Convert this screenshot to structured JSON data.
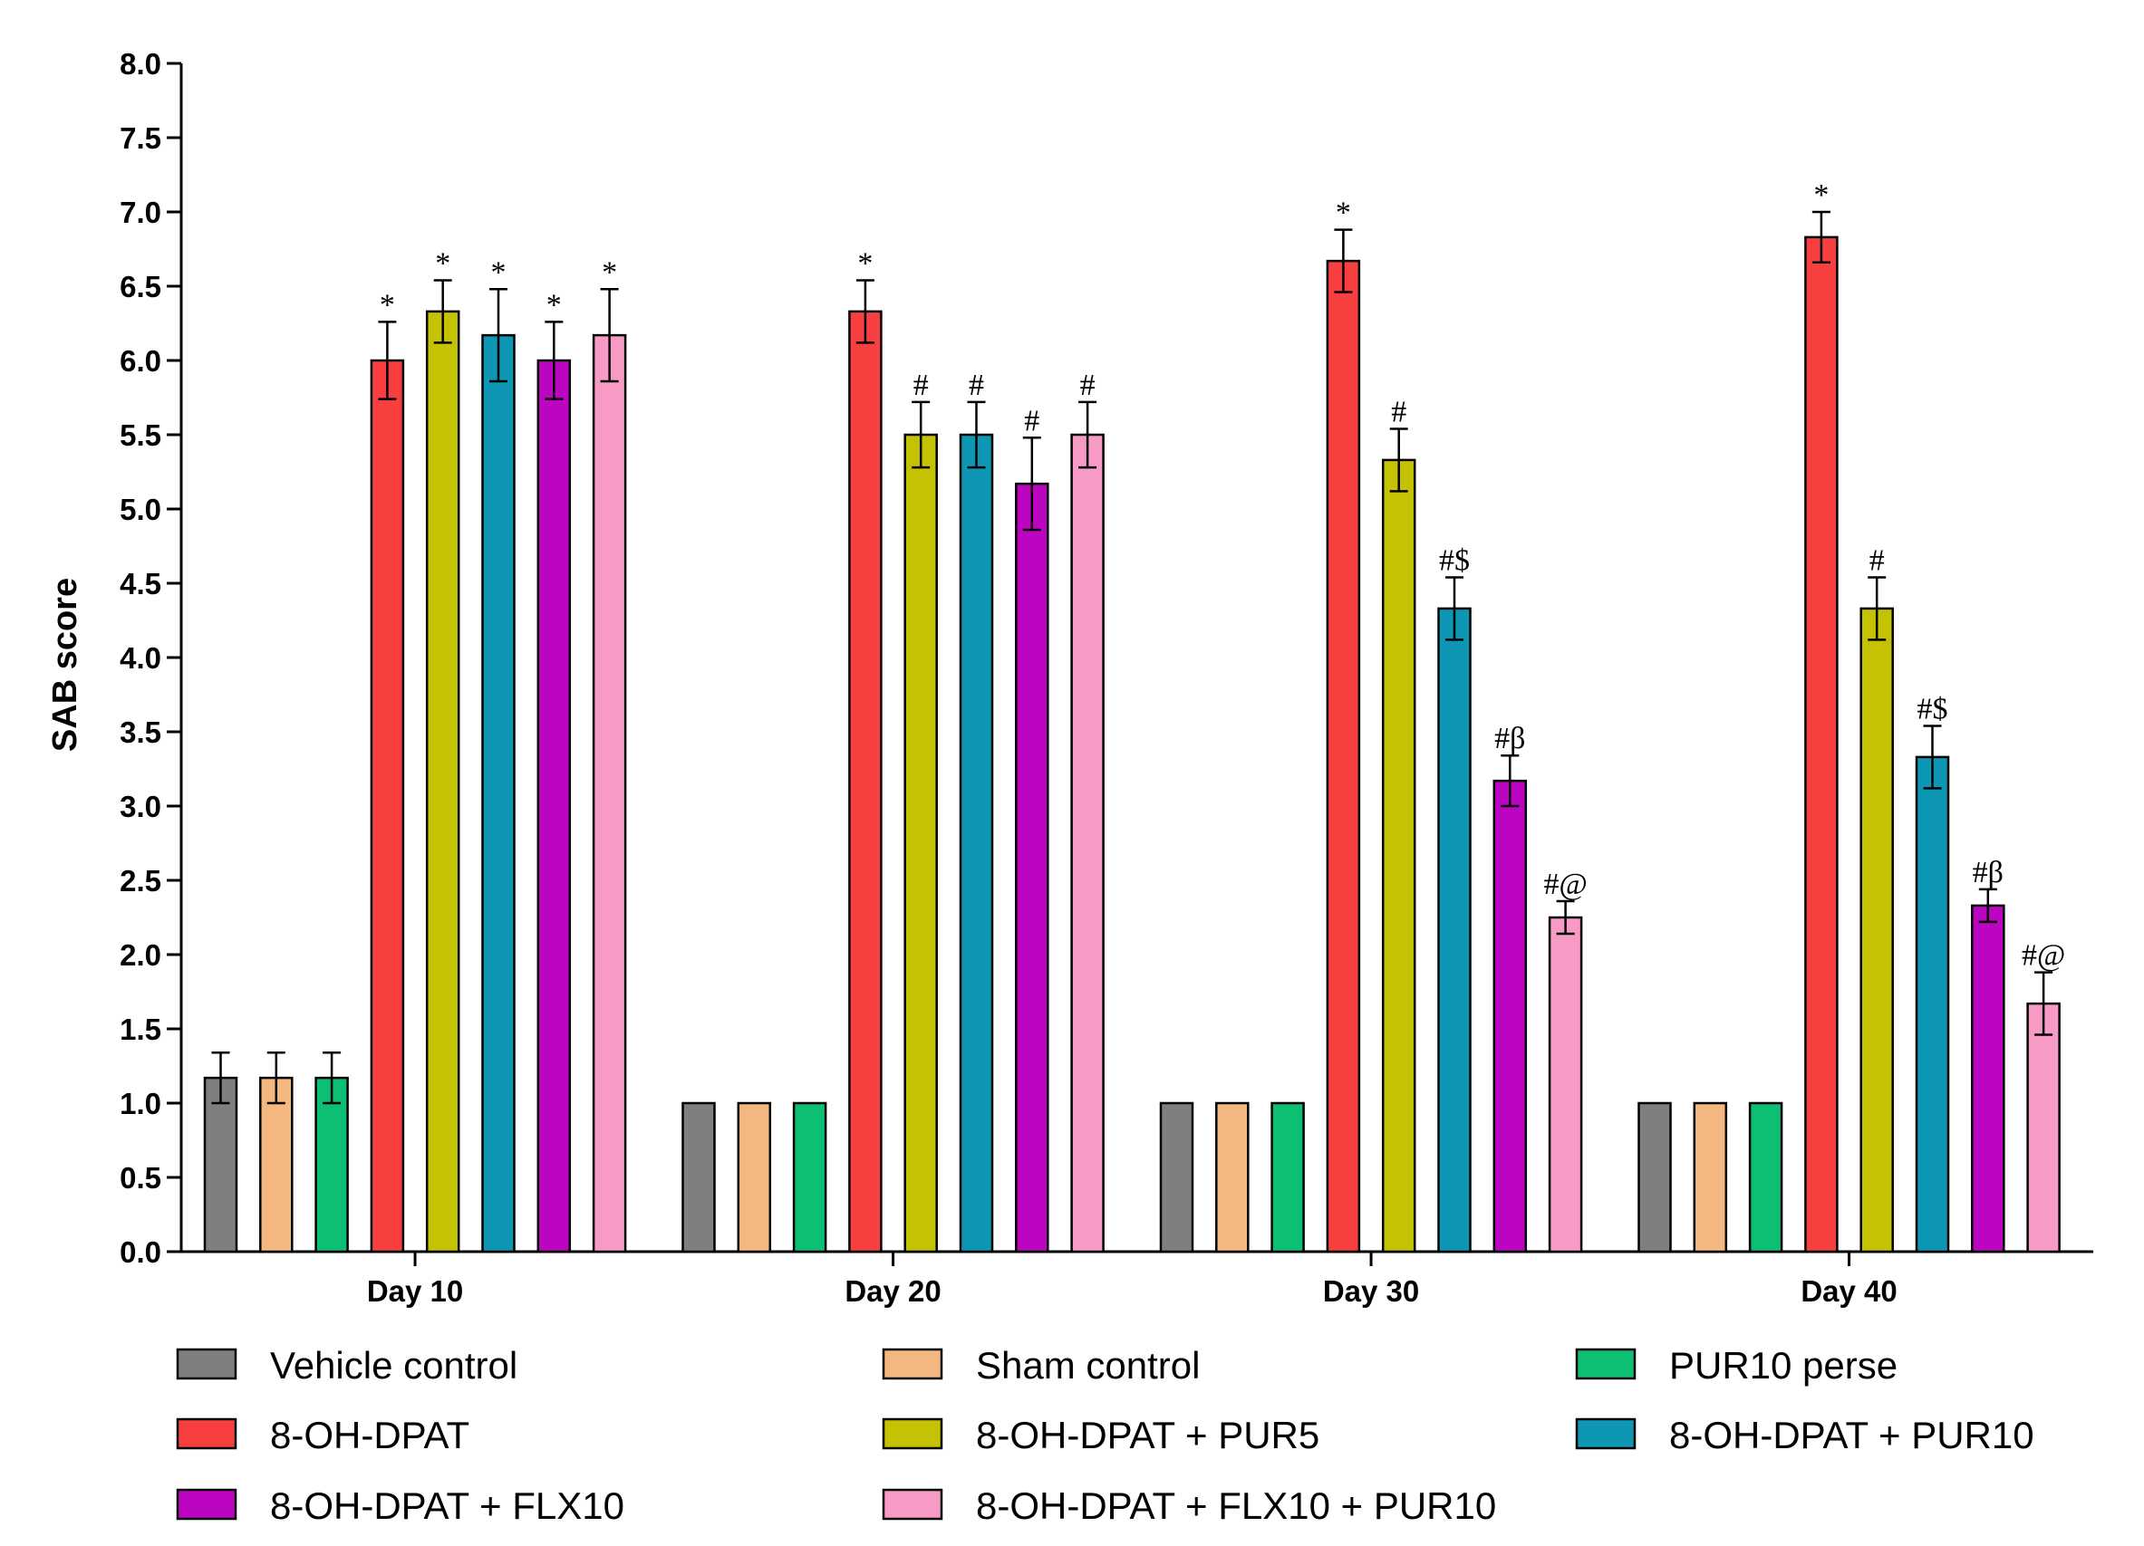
{
  "chart_data": {
    "type": "bar",
    "title": "",
    "xlabel": "",
    "ylabel": "SAB score",
    "ylim": [
      0,
      8
    ],
    "yticks": [
      "0.0",
      "0.5",
      "1.0",
      "1.5",
      "2.0",
      "2.5",
      "3.0",
      "3.5",
      "4.0",
      "4.5",
      "5.0",
      "5.5",
      "6.0",
      "6.5",
      "7.0",
      "7.5",
      "8.0"
    ],
    "grid": false,
    "legend_position": "bottom",
    "categories": [
      "Day 10",
      "Day 20",
      "Day 30",
      "Day 40"
    ],
    "series": [
      {
        "name": "Vehicle control",
        "color": "#7f7f7f",
        "values": [
          1.17,
          1.0,
          1.0,
          1.0
        ],
        "errors": [
          0.17,
          0,
          0,
          0
        ],
        "labels": [
          "",
          "",
          "",
          ""
        ]
      },
      {
        "name": "Sham control",
        "color": "#f4b77f",
        "values": [
          1.17,
          1.0,
          1.0,
          1.0
        ],
        "errors": [
          0.17,
          0,
          0,
          0
        ],
        "labels": [
          "",
          "",
          "",
          ""
        ]
      },
      {
        "name": "PUR10 perse",
        "color": "#0dbf73",
        "values": [
          1.17,
          1.0,
          1.0,
          1.0
        ],
        "errors": [
          0.17,
          0,
          0,
          0
        ],
        "labels": [
          "",
          "",
          "",
          ""
        ]
      },
      {
        "name": "8-OH-DPAT",
        "color": "#f73f3f",
        "values": [
          6.0,
          6.33,
          6.67,
          6.83
        ],
        "errors": [
          0.26,
          0.21,
          0.21,
          0.17
        ],
        "labels": [
          "*",
          "*",
          "*",
          "*"
        ]
      },
      {
        "name": "8-OH-DPAT + PUR5",
        "color": "#c5c103",
        "values": [
          6.33,
          5.5,
          5.33,
          4.33
        ],
        "errors": [
          0.21,
          0.22,
          0.21,
          0.21
        ],
        "labels": [
          "*",
          "#",
          "#",
          "#"
        ]
      },
      {
        "name": "8-OH-DPAT + PUR10",
        "color": "#0e96b5",
        "values": [
          6.17,
          5.5,
          4.33,
          3.33
        ],
        "errors": [
          0.31,
          0.22,
          0.21,
          0.21
        ],
        "labels": [
          "*",
          "#",
          "#$",
          "#$"
        ]
      },
      {
        "name": "8-OH-DPAT + FLX10",
        "color": "#bb05c0",
        "values": [
          6.0,
          5.17,
          3.17,
          2.33
        ],
        "errors": [
          0.26,
          0.31,
          0.17,
          0.11
        ],
        "labels": [
          "*",
          "#",
          "#β",
          "#β"
        ]
      },
      {
        "name": "8-OH-DPAT + FLX10 + PUR10",
        "color": "#f79ac6",
        "values": [
          6.17,
          5.5,
          2.25,
          1.67
        ],
        "errors": [
          0.31,
          0.22,
          0.11,
          0.21
        ],
        "labels": [
          "*",
          "#",
          "#@",
          "#@"
        ]
      }
    ]
  }
}
